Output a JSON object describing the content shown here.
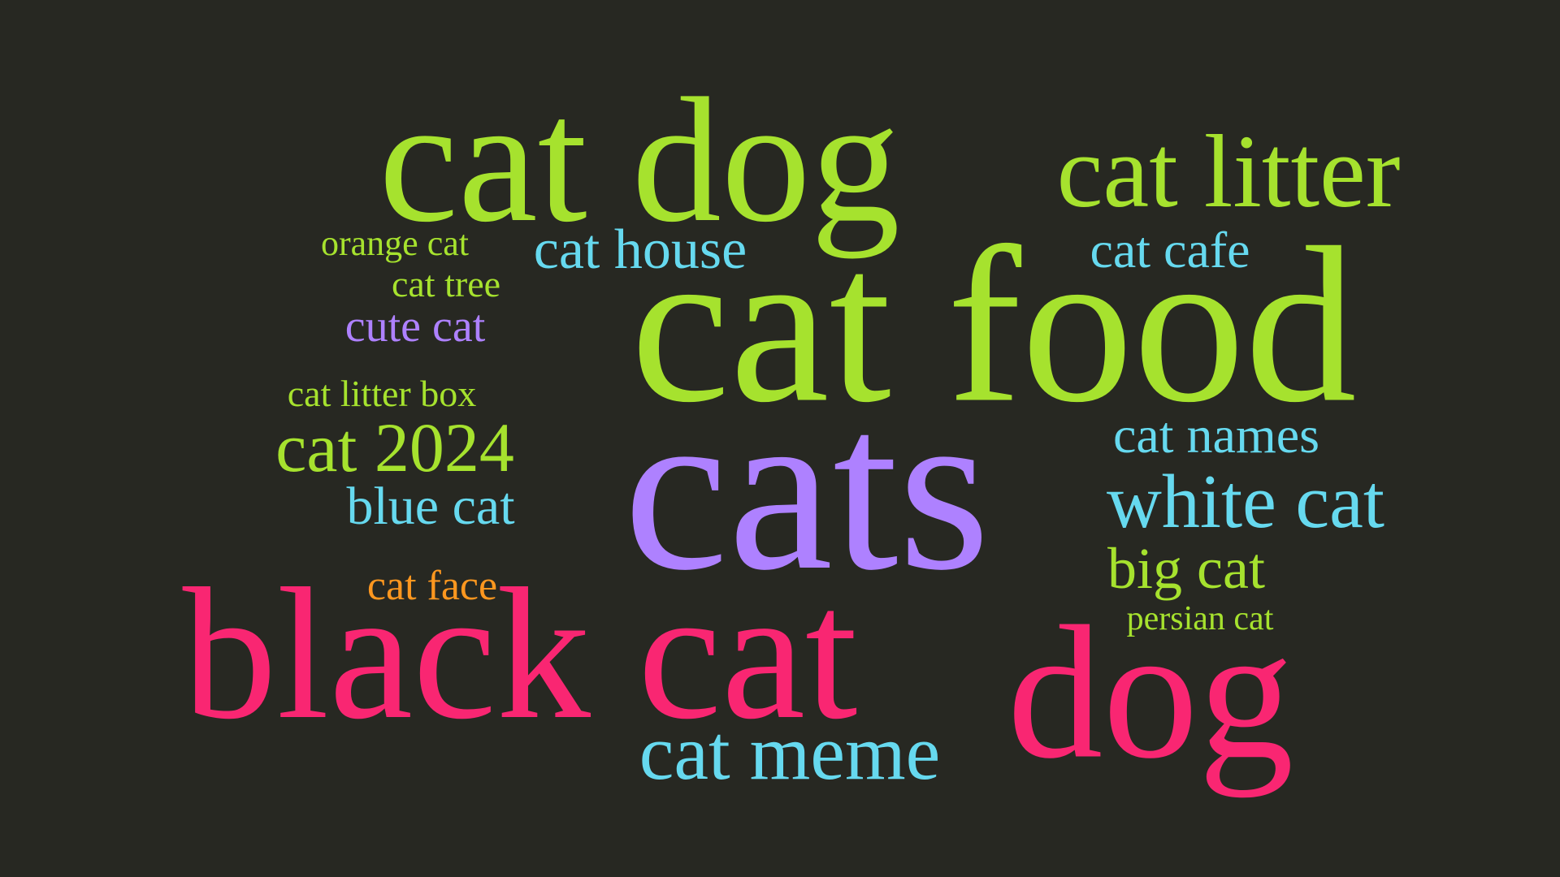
{
  "colors": {
    "background": "#272822",
    "green": "#A6E22E",
    "purple": "#AE81FF",
    "cyan": "#66D9EF",
    "pink": "#F92672",
    "orange": "#FD971F"
  },
  "words": [
    {
      "text": "cat food",
      "color": "#A6E22E"
    },
    {
      "text": "cats",
      "color": "#AE81FF"
    },
    {
      "text": "black cat",
      "color": "#F92672"
    },
    {
      "text": "dog",
      "color": "#F92672"
    },
    {
      "text": "cat dog",
      "color": "#A6E22E"
    },
    {
      "text": "cat litter",
      "color": "#A6E22E"
    },
    {
      "text": "cat meme",
      "color": "#66D9EF"
    },
    {
      "text": "cat house",
      "color": "#66D9EF"
    },
    {
      "text": "cat 2024",
      "color": "#A6E22E"
    },
    {
      "text": "white cat",
      "color": "#66D9EF"
    },
    {
      "text": "cat cafe",
      "color": "#66D9EF"
    },
    {
      "text": "cat names",
      "color": "#66D9EF"
    },
    {
      "text": "big cat",
      "color": "#A6E22E"
    },
    {
      "text": "blue cat",
      "color": "#66D9EF"
    },
    {
      "text": "cute cat",
      "color": "#AE81FF"
    },
    {
      "text": "cat face",
      "color": "#FD971F"
    },
    {
      "text": "orange cat",
      "color": "#A6E22E"
    },
    {
      "text": "cat tree",
      "color": "#A6E22E"
    },
    {
      "text": "cat litter box",
      "color": "#A6E22E"
    },
    {
      "text": "persian cat",
      "color": "#A6E22E"
    }
  ]
}
